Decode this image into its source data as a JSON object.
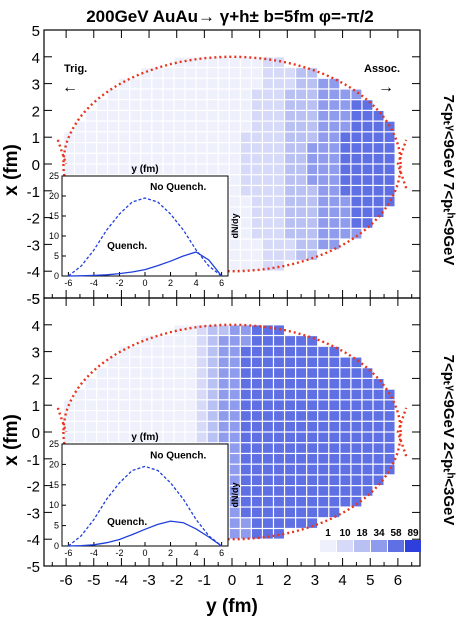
{
  "title": "200GeV  AuAu→ γ+h±  b=5fm  φ=-π/2",
  "annotations": {
    "trig": "Trig.",
    "assoc": "Assoc.",
    "arrow_left": "←",
    "arrow_right": "→"
  },
  "axes": {
    "xlabel": "y (fm)",
    "ylabel": "x (fm)",
    "xticks": [
      "-6",
      "-5",
      "-4",
      "-3",
      "-2",
      "-1",
      "0",
      "1",
      "2",
      "3",
      "4",
      "5",
      "6"
    ],
    "yticks": [
      "-5",
      "-4",
      "-3",
      "-2",
      "-1",
      "0",
      "1",
      "2",
      "3",
      "4",
      "5"
    ]
  },
  "panels": [
    {
      "side_label": "7<pₜᵞ<9GeV  7<pₜʰ<9GeV",
      "inset": {
        "title": "y (fm)",
        "ylabel": "dN/dy",
        "label_no_quench": "No Quench.",
        "label_quench": "Quench.",
        "xticks": [
          "-6",
          "-4",
          "-2",
          "0",
          "2",
          "4",
          "6"
        ],
        "yticks": [
          "0",
          "5",
          "10",
          "15",
          "20",
          "25"
        ]
      }
    },
    {
      "side_label": "7<pₜᵞ<9GeV  2<pₜʰ<3GeV",
      "inset": {
        "title": "y (fm)",
        "ylabel": "dN/dy",
        "label_no_quench": "No Quench.",
        "label_quench": "Quench.",
        "xticks": [
          "-6",
          "-4",
          "-2",
          "0",
          "2",
          "4",
          "6"
        ],
        "yticks": [
          "0",
          "5",
          "10",
          "15",
          "20",
          "25"
        ]
      }
    }
  ],
  "legend": {
    "values": [
      "1",
      "10",
      "18",
      "34",
      "58",
      "89"
    ],
    "colors": [
      "#eef0fc",
      "#d6daf8",
      "#b9c1f3",
      "#8f9bec",
      "#5f6fe4",
      "#2f3fdc"
    ]
  },
  "chart_data": [
    {
      "type": "heatmap",
      "description_panel": "top",
      "xlabel": "y (fm)",
      "ylabel": "x (fm)",
      "xlim": [
        -6.8,
        6.8
      ],
      "ylim": [
        -5,
        5
      ],
      "nuclear_overlap": {
        "y_half_width": 6.1,
        "x_half_height": 4.0,
        "line_color": "#e8341c"
      },
      "density_profile": "increasing toward +y with strong peak near y=4, suppressed at negative y",
      "color_scale": [
        1,
        89
      ],
      "inset": {
        "type": "line",
        "x": [
          -6,
          -5,
          -4,
          -3,
          -2,
          -1,
          0,
          1,
          2,
          3,
          4,
          5,
          6
        ],
        "series": [
          {
            "name": "No Quench.",
            "style": "dashed",
            "values": [
              0,
              2.5,
              6.5,
              11.5,
              15.5,
              18.5,
              19.5,
              18.5,
              15.5,
              11.5,
              6.5,
              2.5,
              0
            ]
          },
          {
            "name": "Quench.",
            "style": "solid",
            "values": [
              0,
              0.05,
              0.15,
              0.3,
              0.6,
              1.0,
              1.6,
              2.6,
              3.7,
              5.0,
              6.0,
              4.0,
              0
            ]
          }
        ],
        "xlim": [
          -6.5,
          6.5
        ],
        "ylim": [
          0,
          25
        ]
      }
    },
    {
      "type": "heatmap",
      "description_panel": "bottom",
      "xlabel": "y (fm)",
      "ylabel": "x (fm)",
      "xlim": [
        -6.8,
        6.8
      ],
      "ylim": [
        -5,
        5
      ],
      "nuclear_overlap": {
        "y_half_width": 6.1,
        "x_half_height": 4.0,
        "line_color": "#e8341c"
      },
      "density_profile": "broad high density from y=0 to y=4, suppressed at negative y",
      "color_scale": [
        1,
        89
      ],
      "inset": {
        "type": "line",
        "x": [
          -6,
          -5,
          -4,
          -3,
          -2,
          -1,
          0,
          1,
          2,
          3,
          4,
          5,
          6
        ],
        "series": [
          {
            "name": "No Quench.",
            "style": "dashed",
            "values": [
              0,
              2.5,
              6.5,
              11.5,
              15.5,
              18.5,
              19.5,
              18.5,
              15.5,
              11.5,
              6.5,
              2.5,
              0
            ]
          },
          {
            "name": "Quench.",
            "style": "solid",
            "values": [
              0,
              0.1,
              0.3,
              0.8,
              1.6,
              2.8,
              4.1,
              5.3,
              6.1,
              5.7,
              4.2,
              2.2,
              0
            ]
          }
        ],
        "xlim": [
          -6.5,
          6.5
        ],
        "ylim": [
          0,
          25
        ]
      }
    }
  ]
}
